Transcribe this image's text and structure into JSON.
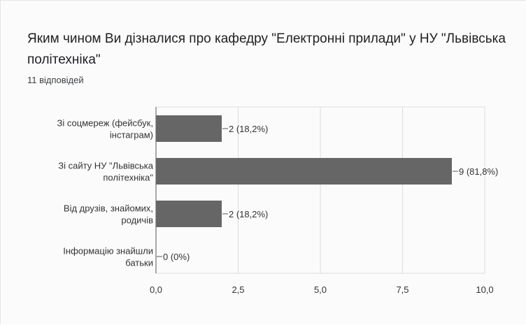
{
  "question": {
    "title": "Яким чином Ви дізналися про кафедру \"Електронні прилади\" у НУ \"Львівська політехніка\"",
    "response_count": "11 відповідей"
  },
  "chart_data": {
    "type": "bar",
    "orientation": "horizontal",
    "categories": [
      [
        "Зі соцмереж (фейсбук,",
        "інстаграм)"
      ],
      [
        "Зі сайту НУ \"Львівська",
        "політехніка\""
      ],
      [
        "Від друзів, знайомих,",
        "родичів"
      ],
      [
        "Інформацію знайшли",
        "батьки"
      ]
    ],
    "values": [
      2,
      9,
      2,
      0
    ],
    "value_labels": [
      "2 (18,2%)",
      "9 (81,8%)",
      "2 (18,2%)",
      "0 (0%)"
    ],
    "xlim": [
      0,
      10
    ],
    "xticks": [
      0,
      2.5,
      5,
      7.5,
      10
    ],
    "xtick_labels": [
      "0,0",
      "2,5",
      "5,0",
      "7,5",
      "10,0"
    ],
    "grid": true,
    "colors": {
      "bar": "#666666",
      "grid": "#dcdcdc",
      "axis": "#555555"
    }
  }
}
